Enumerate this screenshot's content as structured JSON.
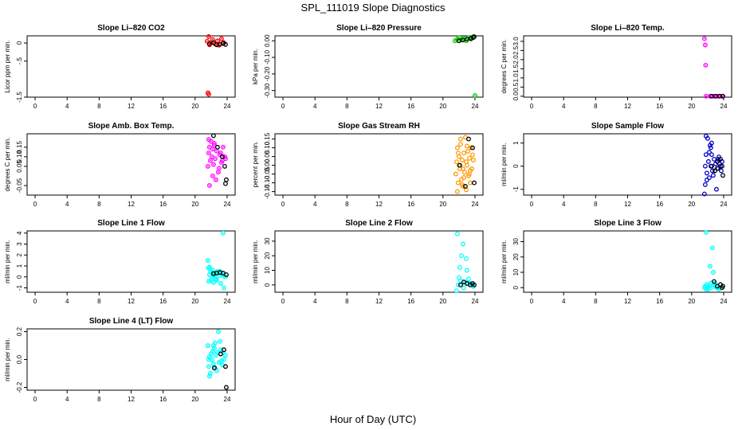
{
  "title": "SPL_111019  Slope Diagnostics",
  "xlabel": "Hour of Day (UTC)",
  "chart_data": [
    {
      "type": "scatter",
      "title": "Slope Li–820 CO2",
      "ylabel": "Licor ppm per min.",
      "xlim": [
        -1,
        25
      ],
      "ylim": [
        -1.5,
        0.2
      ],
      "xticks": [
        "0",
        "4",
        "8",
        "12",
        "16",
        "20",
        "24"
      ],
      "yticks": [
        {
          "v": 0,
          "t": "0"
        },
        {
          "v": -0.5,
          "t": "-.5"
        },
        {
          "v": -1.5,
          "t": "-1.5"
        }
      ],
      "series": [
        {
          "name": "slope",
          "color": "#ff0000",
          "fill": true,
          "x": [
            21.5,
            21.7,
            21.8,
            22,
            22.2,
            22.5,
            22.8,
            23,
            23.3,
            23.6,
            21.6,
            21.7
          ],
          "y": [
            0.05,
            0.18,
            -0.05,
            0.02,
            0.1,
            -0.03,
            0.06,
            -0.06,
            0.12,
            0.01,
            -1.38,
            -1.42
          ]
        },
        {
          "name": "qc",
          "color": "#000000",
          "fill": false,
          "x": [
            21.8,
            22.3,
            22.7,
            23.1,
            23.5,
            23.8
          ],
          "y": [
            -0.02,
            0.01,
            -0.05,
            -0.03,
            -0.01,
            -0.04
          ]
        }
      ]
    },
    {
      "type": "scatter",
      "title": "Slope Li–820 Pressure",
      "ylabel": "kPa per min.",
      "xlim": [
        -1,
        25
      ],
      "ylim": [
        -0.34,
        0.03
      ],
      "xticks": [
        "0",
        "4",
        "8",
        "12",
        "16",
        "20",
        "24"
      ],
      "yticks": [
        {
          "v": 0,
          "t": "0.00"
        },
        {
          "v": -0.1,
          "t": "-0.10"
        },
        {
          "v": -0.2,
          "t": "-0.20"
        },
        {
          "v": -0.3,
          "t": "-0.30"
        }
      ],
      "series": [
        {
          "name": "slope",
          "color": "#00cc00",
          "fill": true,
          "x": [
            21.5,
            21.8,
            22,
            22.3,
            22.6,
            22.9,
            23.2,
            23.5,
            23.8,
            24
          ],
          "y": [
            0.0,
            0.01,
            0.02,
            0.005,
            0.015,
            0.0,
            0.02,
            0.01,
            0.025,
            -0.33
          ]
        },
        {
          "name": "qc",
          "color": "#000000",
          "fill": false,
          "x": [
            22,
            22.5,
            23,
            23.5,
            23.8,
            23.9
          ],
          "y": [
            0.0,
            0.005,
            0.01,
            0.015,
            0.02,
            0.025
          ]
        }
      ]
    },
    {
      "type": "scatter",
      "title": "Slope Li–820 Temp.",
      "ylabel": "degrees C per min.",
      "xlim": [
        -1,
        25
      ],
      "ylim": [
        -0.05,
        3.3
      ],
      "xticks": [
        "0",
        "4",
        "8",
        "12",
        "16",
        "20",
        "24"
      ],
      "yticks": [
        {
          "v": 0,
          "t": "0.0"
        },
        {
          "v": 0.5,
          "t": "0.5"
        },
        {
          "v": 1.0,
          "t": "1.0"
        },
        {
          "v": 1.5,
          "t": "1.5"
        },
        {
          "v": 2.0,
          "t": "2.0"
        },
        {
          "v": 2.5,
          "t": "2.5"
        },
        {
          "v": 3.0,
          "t": "3.0"
        }
      ],
      "series": [
        {
          "name": "slope",
          "color": "#ff00ff",
          "fill": true,
          "x": [
            21.6,
            21.7,
            21.75,
            21.8,
            22.3,
            22.8,
            23.3,
            23.8
          ],
          "y": [
            3.15,
            2.8,
            1.7,
            0.0,
            0.0,
            0.0,
            0.0,
            0.0
          ]
        },
        {
          "name": "qc",
          "color": "#000000",
          "fill": false,
          "x": [
            22.5,
            23,
            23.5,
            23.9
          ],
          "y": [
            0.0,
            0.0,
            0.0,
            0.0
          ]
        }
      ]
    },
    {
      "type": "scatter",
      "title": "Slope Amb. Box Temp.",
      "ylabel": "degrees C per min.",
      "xlim": [
        -1,
        25
      ],
      "ylim": [
        -0.1,
        0.22
      ],
      "xticks": [
        "0",
        "4",
        "8",
        "12",
        "16",
        "20",
        "24"
      ],
      "yticks": [
        {
          "v": -0.05,
          "t": "-0.05"
        },
        {
          "v": 0.05,
          "t": "0.05"
        },
        {
          "v": 0.1,
          "t": "0.10"
        },
        {
          "v": 0.15,
          "t": "0.15"
        }
      ],
      "series": [
        {
          "name": "slope",
          "color": "#ff00ff",
          "fill": true,
          "x": [
            21.6,
            21.7,
            21.8,
            21.9,
            22,
            22.1,
            22.2,
            22.3,
            22.4,
            22.5,
            22.7,
            22.9,
            23.1,
            23.3,
            23.5,
            23.7,
            21.8,
            22.2,
            22.6,
            23,
            23.4,
            23.8,
            21.7,
            22.4,
            23.2
          ],
          "y": [
            0.05,
            0.12,
            0.15,
            0.08,
            0.18,
            0.1,
            0.14,
            0.06,
            0.16,
            0.09,
            0.13,
            0.02,
            0.11,
            0.07,
            0.15,
            0.1,
            -0.05,
            0.0,
            -0.02,
            0.04,
            0.08,
            0.09,
            0.19,
            0.17,
            0.12
          ]
        },
        {
          "name": "qc",
          "color": "#000000",
          "fill": false,
          "x": [
            22.3,
            22.8,
            23.4,
            23.7,
            23.9,
            23.8
          ],
          "y": [
            0.21,
            0.15,
            0.1,
            0.05,
            -0.02,
            -0.04
          ]
        }
      ]
    },
    {
      "type": "scatter",
      "title": "Slope Gas Stream RH",
      "ylabel": "percent per min.",
      "xlim": [
        -1,
        25
      ],
      "ylim": [
        -0.17,
        0.18
      ],
      "xticks": [
        "0",
        "4",
        "8",
        "12",
        "16",
        "20",
        "24"
      ],
      "yticks": [
        {
          "v": -0.15,
          "t": "-0.15"
        },
        {
          "v": -0.1,
          "t": "-0.10"
        },
        {
          "v": -0.05,
          "t": "-0.05"
        },
        {
          "v": 0,
          "t": "0.00"
        },
        {
          "v": 0.05,
          "t": "0.05"
        },
        {
          "v": 0.1,
          "t": "0.10"
        },
        {
          "v": 0.15,
          "t": "0.15"
        }
      ],
      "series": [
        {
          "name": "slope",
          "color": "#ff9900",
          "fill": false,
          "x": [
            21.6,
            21.7,
            21.8,
            21.9,
            22,
            22.1,
            22.2,
            22.3,
            22.4,
            22.5,
            22.6,
            22.7,
            22.8,
            22.9,
            23,
            23.1,
            23.2,
            23.3,
            23.4,
            23.5,
            23.6,
            23.7,
            21.8,
            22.2,
            22.6,
            23,
            23.4,
            21.9,
            22.4,
            22.9,
            23.3,
            23.8,
            22,
            22.5
          ],
          "y": [
            -0.05,
            0.02,
            0.1,
            -0.1,
            0.05,
            -0.02,
            0.12,
            -0.08,
            0.03,
            -0.12,
            0.07,
            -0.04,
            0.16,
            -0.14,
            0.0,
            0.08,
            -0.06,
            0.04,
            -0.1,
            0.1,
            -0.02,
            0.06,
            -0.15,
            0.15,
            -0.07,
            0.11,
            -0.03,
            0.07,
            -0.11,
            0.02,
            -0.05,
            0.03,
            0.0,
            -0.02
          ]
        },
        {
          "name": "qc",
          "color": "#000000",
          "fill": false,
          "x": [
            22.1,
            22.8,
            23.2,
            23.7,
            23.9
          ],
          "y": [
            0.0,
            -0.12,
            0.15,
            0.1,
            -0.1
          ]
        }
      ]
    },
    {
      "type": "scatter",
      "title": "Slope Sample Flow",
      "ylabel": "ml/min per min.",
      "xlim": [
        -1,
        25
      ],
      "ylim": [
        -1.25,
        1.4
      ],
      "xticks": [
        "0",
        "4",
        "8",
        "12",
        "16",
        "20",
        "24"
      ],
      "yticks": [
        {
          "v": -1,
          "t": "-1"
        },
        {
          "v": 0,
          "t": "0"
        },
        {
          "v": 1,
          "t": "1"
        }
      ],
      "series": [
        {
          "name": "slope",
          "color": "#0000cc",
          "fill": false,
          "x": [
            21.6,
            21.7,
            21.8,
            21.9,
            22,
            22.1,
            22.2,
            22.3,
            22.4,
            22.5,
            22.6,
            22.8,
            23,
            23.2,
            23.4,
            23.6,
            23.8,
            21.8,
            22.2,
            22.7,
            23.1,
            23.5,
            21.7,
            22.4,
            23.3,
            21.9,
            22.5,
            23.7
          ],
          "y": [
            -1.2,
            -0.8,
            0.5,
            -0.3,
            1.2,
            0.2,
            -0.5,
            0.9,
            0.0,
            1.0,
            -0.2,
            0.3,
            0.1,
            -0.1,
            0.4,
            0.0,
            0.2,
            1.3,
            0.6,
            -0.4,
            -1.0,
            0.1,
            0.0,
            0.8,
            0.3,
            -0.6,
            0.5,
            -0.2
          ]
        },
        {
          "name": "qc",
          "color": "#000000",
          "fill": false,
          "x": [
            22.5,
            22.9,
            23.3,
            23.6,
            23.8,
            23.9,
            23.2
          ],
          "y": [
            0.0,
            -0.2,
            -0.1,
            0.3,
            0.0,
            -0.4,
            0.2
          ]
        }
      ]
    },
    {
      "type": "scatter",
      "title": "Slope Line 1 Flow",
      "ylabel": "ml/min per min.",
      "xlim": [
        -1,
        25
      ],
      "ylim": [
        -1.4,
        4.2
      ],
      "xticks": [
        "0",
        "4",
        "8",
        "12",
        "16",
        "20",
        "24"
      ],
      "yticks": [
        {
          "v": -1,
          "t": "-1"
        },
        {
          "v": 0,
          "t": "0"
        },
        {
          "v": 1,
          "t": "1"
        },
        {
          "v": 2,
          "t": "2"
        },
        {
          "v": 3,
          "t": "3"
        },
        {
          "v": 4,
          "t": "4"
        }
      ],
      "series": [
        {
          "name": "slope",
          "color": "#00ffff",
          "fill": true,
          "x": [
            21.6,
            21.7,
            21.8,
            21.9,
            22,
            22.1,
            22.2,
            22.3,
            22.4,
            22.5,
            22.6,
            22.8,
            23,
            23.2,
            23.4,
            23.6,
            23.8,
            21.8,
            22.3,
            22.7,
            23.1,
            23.5,
            21.7,
            23.5
          ],
          "y": [
            1.5,
            0.8,
            0.2,
            0.5,
            -0.3,
            0.0,
            0.6,
            -0.5,
            0.2,
            0.4,
            -0.2,
            0.5,
            0.1,
            -0.6,
            0.3,
            -1.0,
            0.0,
            0.9,
            0.2,
            -0.3,
            0.5,
            0.1,
            -0.4,
            4.0
          ]
        },
        {
          "name": "qc",
          "color": "#000000",
          "fill": false,
          "x": [
            22.3,
            22.7,
            23.1,
            23.5,
            23.9
          ],
          "y": [
            0.3,
            0.35,
            0.4,
            0.35,
            0.2
          ]
        }
      ]
    },
    {
      "type": "scatter",
      "title": "Slope Line 2 Flow",
      "ylabel": "ml/min per min.",
      "xlim": [
        -1,
        25
      ],
      "ylim": [
        -5,
        37
      ],
      "xticks": [
        "0",
        "4",
        "8",
        "12",
        "16",
        "20",
        "24"
      ],
      "yticks": [
        {
          "v": 0,
          "t": "0"
        },
        {
          "v": 10,
          "t": "10"
        },
        {
          "v": 20,
          "t": "20"
        },
        {
          "v": 30,
          "t": "30"
        }
      ],
      "series": [
        {
          "name": "slope",
          "color": "#00ffff",
          "fill": false,
          "x": [
            21.7,
            21.8,
            22,
            22.1,
            22.3,
            22.5,
            22.8,
            23,
            23.2,
            23.4,
            23.6,
            23.8,
            21.9,
            22.2,
            22.6,
            23.1,
            22.9
          ],
          "y": [
            -4,
            35,
            5,
            12,
            20,
            28,
            2,
            10,
            4,
            1,
            0,
            -1,
            0,
            3,
            -2,
            1,
            18
          ]
        },
        {
          "name": "qc",
          "color": "#000000",
          "fill": false,
          "x": [
            22.2,
            22.6,
            23,
            23.4,
            23.7,
            23.9
          ],
          "y": [
            0,
            2,
            1,
            0,
            1,
            0
          ]
        }
      ]
    },
    {
      "type": "scatter",
      "title": "Slope Line 3 Flow",
      "ylabel": "ml/min per min.",
      "xlim": [
        -1,
        25
      ],
      "ylim": [
        -3,
        37
      ],
      "xticks": [
        "0",
        "4",
        "8",
        "12",
        "16",
        "20",
        "24"
      ],
      "yticks": [
        {
          "v": 0,
          "t": "0"
        },
        {
          "v": 10,
          "t": "10"
        },
        {
          "v": 20,
          "t": "20"
        },
        {
          "v": 30,
          "t": "30"
        }
      ],
      "series": [
        {
          "name": "slope",
          "color": "#00ffff",
          "fill": true,
          "x": [
            21.6,
            21.7,
            21.8,
            21.9,
            22,
            22.1,
            22.2,
            22.3,
            22.4,
            22.5,
            22.6,
            22.8,
            23,
            23.2,
            23.4,
            23.6,
            21.8,
            22.7,
            22.9,
            23.1
          ],
          "y": [
            0,
            1,
            36,
            2,
            0,
            -1,
            1,
            14,
            3,
            0,
            26,
            2,
            1,
            0,
            -1,
            0,
            -1,
            10,
            3,
            0
          ]
        },
        {
          "name": "qc",
          "color": "#000000",
          "fill": false,
          "x": [
            22.8,
            23.2,
            23.6,
            23.8,
            23.9
          ],
          "y": [
            4,
            1,
            2,
            0,
            1
          ]
        }
      ]
    },
    {
      "type": "scatter",
      "title": "Slope Line 4 (LT) Flow",
      "ylabel": "ml/min per min.",
      "xlim": [
        -1,
        25
      ],
      "ylim": [
        -0.22,
        0.22
      ],
      "xticks": [
        "0",
        "4",
        "8",
        "12",
        "16",
        "20",
        "24"
      ],
      "yticks": [
        {
          "v": -0.2,
          "t": "-0.2"
        },
        {
          "v": 0,
          "t": "0.0"
        },
        {
          "v": 0.2,
          "t": "0.2"
        }
      ],
      "series": [
        {
          "name": "slope",
          "color": "#00ffff",
          "fill": true,
          "x": [
            21.6,
            21.7,
            21.8,
            21.9,
            22,
            22.1,
            22.2,
            22.3,
            22.4,
            22.5,
            22.6,
            22.8,
            23,
            23.2,
            23.4,
            23.6,
            23.8,
            21.8,
            22.3,
            22.7,
            23.1,
            23.5,
            21.7,
            22.5,
            23.3,
            22.9
          ],
          "y": [
            0.1,
            -0.05,
            0.02,
            -0.1,
            0.04,
            0.0,
            0.06,
            -0.03,
            0.08,
            -0.06,
            0.03,
            0.05,
            -0.02,
            0.07,
            -0.04,
            0.0,
            0.03,
            -0.12,
            0.1,
            -0.08,
            0.13,
            0.05,
            0.0,
            0.12,
            -0.01,
            0.2
          ]
        },
        {
          "name": "qc",
          "color": "#000000",
          "fill": false,
          "x": [
            22.4,
            23.2,
            23.6,
            23.8,
            23.9
          ],
          "y": [
            -0.06,
            0.04,
            0.07,
            -0.05,
            -0.2
          ]
        }
      ]
    }
  ]
}
